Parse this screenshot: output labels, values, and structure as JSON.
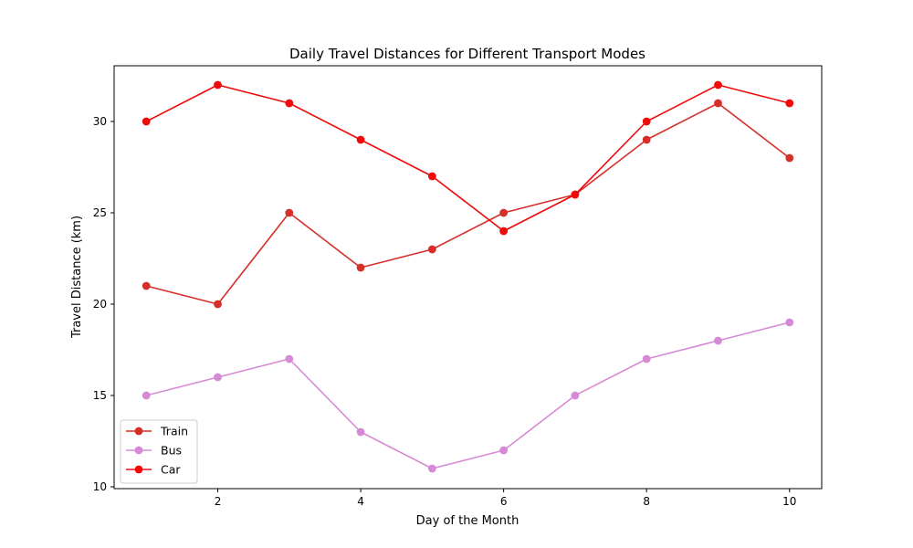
{
  "chart_data": {
    "type": "line",
    "title": "Daily Travel Distances for Different Transport Modes",
    "xlabel": "Day of the Month",
    "ylabel": "Travel Distance (km)",
    "x": [
      1,
      2,
      3,
      4,
      5,
      6,
      7,
      8,
      9,
      10
    ],
    "xlim": [
      0.55,
      10.45
    ],
    "ylim": [
      9.9,
      33.05
    ],
    "xticks": [
      2,
      4,
      6,
      8,
      10
    ],
    "yticks": [
      10,
      15,
      20,
      25,
      30
    ],
    "grid": false,
    "legend_position": "lower-left",
    "series": [
      {
        "name": "Train",
        "color": "#d62f2a",
        "marker": "circle",
        "values": [
          21,
          20,
          25,
          22,
          23,
          25,
          26,
          29,
          31,
          28
        ]
      },
      {
        "name": "Bus",
        "color": "#d68ad6",
        "marker": "circle",
        "values": [
          15,
          16,
          17,
          13,
          11,
          12,
          15,
          17,
          18,
          19
        ]
      },
      {
        "name": "Car",
        "color": "#f00a0a",
        "marker": "circle",
        "values": [
          30,
          32,
          31,
          29,
          27,
          24,
          26,
          30,
          32,
          31
        ]
      }
    ]
  }
}
